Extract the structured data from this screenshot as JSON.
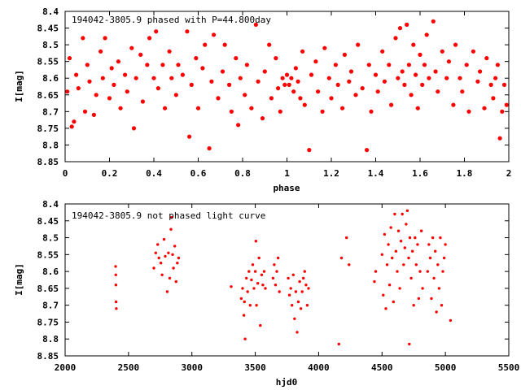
{
  "colors": {
    "points": "#ff0000",
    "axes": "#000000",
    "background": "#ffffff"
  },
  "chart_data": [
    {
      "type": "scatter",
      "title": "194042-3805.9 phased with P=44.800day",
      "xlabel": "phase",
      "ylabel": "I[mag]",
      "xlim": [
        0,
        2
      ],
      "ylim": [
        8.4,
        8.85
      ],
      "y_inverted": true,
      "grid": false,
      "marker": "filled-circle",
      "x_ticks": [
        "0",
        "0.2",
        "0.4",
        "0.6",
        "0.8",
        "1",
        "1.2",
        "1.4",
        "1.6",
        "1.8",
        "2"
      ],
      "y_ticks": [
        "8.4",
        "8.45",
        "8.5",
        "8.55",
        "8.6",
        "8.65",
        "8.7",
        "8.75",
        "8.8",
        "8.85"
      ],
      "points": [
        [
          0.01,
          8.64
        ],
        [
          0.02,
          8.54
        ],
        [
          0.03,
          8.745
        ],
        [
          0.04,
          8.73
        ],
        [
          0.05,
          8.59
        ],
        [
          0.06,
          8.63
        ],
        [
          0.08,
          8.48
        ],
        [
          0.09,
          8.7
        ],
        [
          0.1,
          8.56
        ],
        [
          0.11,
          8.61
        ],
        [
          0.13,
          8.71
        ],
        [
          0.14,
          8.65
        ],
        [
          0.16,
          8.52
        ],
        [
          0.17,
          8.6
        ],
        [
          0.18,
          8.48
        ],
        [
          0.2,
          8.66
        ],
        [
          0.21,
          8.57
        ],
        [
          0.22,
          8.62
        ],
        [
          0.24,
          8.55
        ],
        [
          0.25,
          8.69
        ],
        [
          0.27,
          8.59
        ],
        [
          0.28,
          8.64
        ],
        [
          0.3,
          8.51
        ],
        [
          0.31,
          8.75
        ],
        [
          0.32,
          8.6
        ],
        [
          0.34,
          8.53
        ],
        [
          0.35,
          8.67
        ],
        [
          0.37,
          8.56
        ],
        [
          0.38,
          8.48
        ],
        [
          0.4,
          8.6
        ],
        [
          0.41,
          8.46
        ],
        [
          0.42,
          8.63
        ],
        [
          0.44,
          8.56
        ],
        [
          0.45,
          8.69
        ],
        [
          0.47,
          8.52
        ],
        [
          0.48,
          8.6
        ],
        [
          0.5,
          8.65
        ],
        [
          0.51,
          8.56
        ],
        [
          0.53,
          8.59
        ],
        [
          0.55,
          8.46
        ],
        [
          0.56,
          8.775
        ],
        [
          0.57,
          8.62
        ],
        [
          0.59,
          8.54
        ],
        [
          0.6,
          8.69
        ],
        [
          0.62,
          8.57
        ],
        [
          0.63,
          8.5
        ],
        [
          0.65,
          8.81
        ],
        [
          0.66,
          8.61
        ],
        [
          0.67,
          8.47
        ],
        [
          0.69,
          8.66
        ],
        [
          0.71,
          8.58
        ],
        [
          0.72,
          8.5
        ],
        [
          0.74,
          8.62
        ],
        [
          0.75,
          8.7
        ],
        [
          0.77,
          8.54
        ],
        [
          0.78,
          8.74
        ],
        [
          0.79,
          8.6
        ],
        [
          0.81,
          8.65
        ],
        [
          0.82,
          8.56
        ],
        [
          0.84,
          8.69
        ],
        [
          0.86,
          8.44
        ],
        [
          0.87,
          8.61
        ],
        [
          0.89,
          8.72
        ],
        [
          0.9,
          8.58
        ],
        [
          0.92,
          8.5
        ],
        [
          0.93,
          8.66
        ],
        [
          0.95,
          8.54
        ],
        [
          0.96,
          8.63
        ],
        [
          0.97,
          8.7
        ],
        [
          0.98,
          8.6
        ],
        [
          0.99,
          8.62
        ],
        [
          1.0,
          8.59
        ],
        [
          1.01,
          8.62
        ],
        [
          1.02,
          8.6
        ],
        [
          1.03,
          8.64
        ],
        [
          1.04,
          8.57
        ],
        [
          1.05,
          8.61
        ],
        [
          1.06,
          8.66
        ],
        [
          1.07,
          8.52
        ],
        [
          1.08,
          8.68
        ],
        [
          1.1,
          8.815
        ],
        [
          1.11,
          8.59
        ],
        [
          1.13,
          8.55
        ],
        [
          1.14,
          8.64
        ],
        [
          1.16,
          8.7
        ],
        [
          1.17,
          8.51
        ],
        [
          1.19,
          8.6
        ],
        [
          1.2,
          8.66
        ],
        [
          1.22,
          8.56
        ],
        [
          1.23,
          8.62
        ],
        [
          1.25,
          8.69
        ],
        [
          1.26,
          8.53
        ],
        [
          1.28,
          8.61
        ],
        [
          1.29,
          8.58
        ],
        [
          1.31,
          8.65
        ],
        [
          1.32,
          8.5
        ],
        [
          1.34,
          8.63
        ],
        [
          1.36,
          8.815
        ],
        [
          1.37,
          8.56
        ],
        [
          1.38,
          8.7
        ],
        [
          1.4,
          8.59
        ],
        [
          1.41,
          8.64
        ],
        [
          1.43,
          8.52
        ],
        [
          1.44,
          8.61
        ],
        [
          1.46,
          8.56
        ],
        [
          1.47,
          8.68
        ],
        [
          1.49,
          8.48
        ],
        [
          1.5,
          8.6
        ],
        [
          1.51,
          8.45
        ],
        [
          1.52,
          8.58
        ],
        [
          1.53,
          8.62
        ],
        [
          1.54,
          8.44
        ],
        [
          1.55,
          8.56
        ],
        [
          1.56,
          8.65
        ],
        [
          1.57,
          8.5
        ],
        [
          1.58,
          8.59
        ],
        [
          1.59,
          8.69
        ],
        [
          1.6,
          8.53
        ],
        [
          1.61,
          8.62
        ],
        [
          1.62,
          8.56
        ],
        [
          1.63,
          8.47
        ],
        [
          1.64,
          8.6
        ],
        [
          1.66,
          8.43
        ],
        [
          1.67,
          8.58
        ],
        [
          1.68,
          8.64
        ],
        [
          1.7,
          8.52
        ],
        [
          1.72,
          8.6
        ],
        [
          1.73,
          8.55
        ],
        [
          1.75,
          8.68
        ],
        [
          1.76,
          8.5
        ],
        [
          1.78,
          8.6
        ],
        [
          1.79,
          8.64
        ],
        [
          1.81,
          8.56
        ],
        [
          1.82,
          8.7
        ],
        [
          1.84,
          8.52
        ],
        [
          1.86,
          8.61
        ],
        [
          1.87,
          8.58
        ],
        [
          1.89,
          8.69
        ],
        [
          1.9,
          8.54
        ],
        [
          1.92,
          8.62
        ],
        [
          1.93,
          8.66
        ],
        [
          1.94,
          8.6
        ],
        [
          1.95,
          8.56
        ],
        [
          1.96,
          8.78
        ],
        [
          1.97,
          8.7
        ],
        [
          1.98,
          8.62
        ],
        [
          1.99,
          8.68
        ]
      ]
    },
    {
      "type": "scatter",
      "title": "194042-3805.9 not phased light curve",
      "xlabel": "hjd0",
      "ylabel": "I[mag]",
      "xlim": [
        2000,
        5500
      ],
      "ylim": [
        8.4,
        8.85
      ],
      "y_inverted": true,
      "grid": false,
      "marker": "small-dot",
      "x_ticks": [
        "2000",
        "2500",
        "3000",
        "3500",
        "4000",
        "4500",
        "5000",
        "5500"
      ],
      "y_ticks": [
        "8.4",
        "8.45",
        "8.5",
        "8.55",
        "8.6",
        "8.65",
        "8.7",
        "8.75",
        "8.8",
        "8.85"
      ],
      "points": [
        [
          2398,
          8.585
        ],
        [
          2400,
          8.61
        ],
        [
          2401,
          8.64
        ],
        [
          2402,
          8.69
        ],
        [
          2404,
          8.71
        ],
        [
          2700,
          8.59
        ],
        [
          2715,
          8.545
        ],
        [
          2730,
          8.52
        ],
        [
          2740,
          8.56
        ],
        [
          2755,
          8.575
        ],
        [
          2765,
          8.61
        ],
        [
          2780,
          8.505
        ],
        [
          2790,
          8.555
        ],
        [
          2805,
          8.66
        ],
        [
          2815,
          8.545
        ],
        [
          2825,
          8.62
        ],
        [
          2835,
          8.475
        ],
        [
          2840,
          8.44
        ],
        [
          2848,
          8.55
        ],
        [
          2855,
          8.59
        ],
        [
          2865,
          8.525
        ],
        [
          2875,
          8.63
        ],
        [
          2885,
          8.575
        ],
        [
          2895,
          8.56
        ],
        [
          3310,
          8.645
        ],
        [
          3390,
          8.68
        ],
        [
          3400,
          8.65
        ],
        [
          3410,
          8.73
        ],
        [
          3415,
          8.69
        ],
        [
          3420,
          8.8
        ],
        [
          3430,
          8.62
        ],
        [
          3440,
          8.66
        ],
        [
          3450,
          8.6
        ],
        [
          3460,
          8.7
        ],
        [
          3470,
          8.625
        ],
        [
          3480,
          8.58
        ],
        [
          3490,
          8.65
        ],
        [
          3500,
          8.6
        ],
        [
          3505,
          8.51
        ],
        [
          3510,
          8.7
        ],
        [
          3520,
          8.635
        ],
        [
          3530,
          8.56
        ],
        [
          3540,
          8.76
        ],
        [
          3550,
          8.61
        ],
        [
          3560,
          8.64
        ],
        [
          3570,
          8.6
        ],
        [
          3580,
          8.65
        ],
        [
          3640,
          8.62
        ],
        [
          3650,
          8.58
        ],
        [
          3660,
          8.64
        ],
        [
          3670,
          8.6
        ],
        [
          3680,
          8.56
        ],
        [
          3690,
          8.66
        ],
        [
          3760,
          8.62
        ],
        [
          3770,
          8.67
        ],
        [
          3780,
          8.65
        ],
        [
          3790,
          8.7
        ],
        [
          3800,
          8.61
        ],
        [
          3810,
          8.74
        ],
        [
          3820,
          8.66
        ],
        [
          3830,
          8.78
        ],
        [
          3840,
          8.69
        ],
        [
          3850,
          8.63
        ],
        [
          3860,
          8.71
        ],
        [
          3870,
          8.66
        ],
        [
          3880,
          8.62
        ],
        [
          3890,
          8.6
        ],
        [
          3900,
          8.64
        ],
        [
          3910,
          8.7
        ],
        [
          3920,
          8.65
        ],
        [
          4160,
          8.815
        ],
        [
          4180,
          8.56
        ],
        [
          4220,
          8.5
        ],
        [
          4240,
          8.58
        ],
        [
          4440,
          8.63
        ],
        [
          4450,
          8.6
        ],
        [
          4500,
          8.55
        ],
        [
          4510,
          8.67
        ],
        [
          4520,
          8.49
        ],
        [
          4530,
          8.71
        ],
        [
          4540,
          8.58
        ],
        [
          4550,
          8.52
        ],
        [
          4560,
          8.64
        ],
        [
          4570,
          8.47
        ],
        [
          4580,
          8.56
        ],
        [
          4590,
          8.69
        ],
        [
          4600,
          8.43
        ],
        [
          4610,
          8.54
        ],
        [
          4620,
          8.6
        ],
        [
          4630,
          8.48
        ],
        [
          4640,
          8.65
        ],
        [
          4650,
          8.51
        ],
        [
          4660,
          8.43
        ],
        [
          4670,
          8.58
        ],
        [
          4680,
          8.53
        ],
        [
          4690,
          8.46
        ],
        [
          4700,
          8.42
        ],
        [
          4710,
          8.56
        ],
        [
          4715,
          8.815
        ],
        [
          4720,
          8.5
        ],
        [
          4730,
          8.62
        ],
        [
          4740,
          8.54
        ],
        [
          4750,
          8.7
        ],
        [
          4760,
          8.5
        ],
        [
          4770,
          8.58
        ],
        [
          4780,
          8.52
        ],
        [
          4790,
          8.68
        ],
        [
          4800,
          8.6
        ],
        [
          4810,
          8.48
        ],
        [
          4820,
          8.65
        ],
        [
          4860,
          8.6
        ],
        [
          4870,
          8.52
        ],
        [
          4880,
          8.56
        ],
        [
          4890,
          8.68
        ],
        [
          4900,
          8.5
        ],
        [
          4910,
          8.62
        ],
        [
          4920,
          8.54
        ],
        [
          4930,
          8.72
        ],
        [
          4940,
          8.58
        ],
        [
          4950,
          8.65
        ],
        [
          4960,
          8.5
        ],
        [
          4970,
          8.7
        ],
        [
          4980,
          8.6
        ],
        [
          4990,
          8.56
        ],
        [
          5000,
          8.52
        ],
        [
          5040,
          8.745
        ]
      ]
    }
  ]
}
